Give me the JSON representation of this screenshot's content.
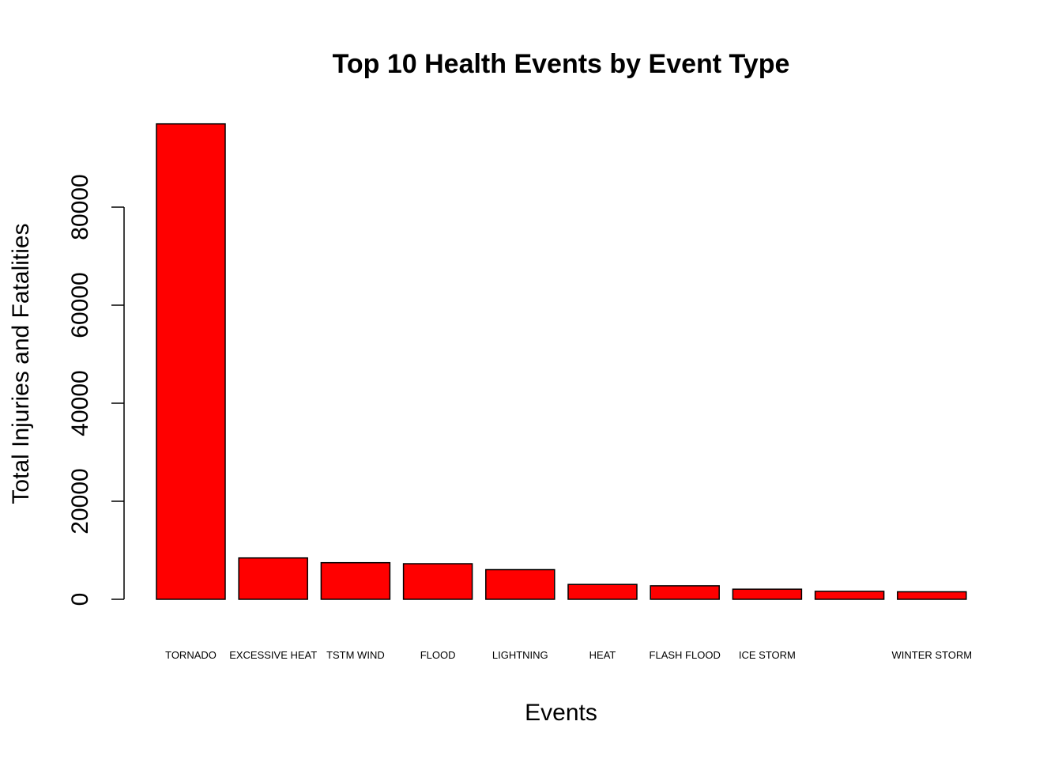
{
  "chart_data": {
    "type": "bar",
    "title": "Top 10 Health Events by Event Type",
    "xlabel": "Events",
    "ylabel": "Total Injuries and Fatalities",
    "categories": [
      "TORNADO",
      "EXCESSIVE HEAT",
      "TSTM WIND",
      "FLOOD",
      "LIGHTNING",
      "HEAT",
      "FLASH FLOOD",
      "ICE STORM",
      "",
      "WINTER STORM"
    ],
    "values": [
      96979,
      8428,
      7461,
      7259,
      6046,
      3037,
      2755,
      2064,
      1621,
      1527
    ],
    "yticks": [
      0,
      20000,
      40000,
      60000,
      80000
    ],
    "ylim": [
      0,
      97000
    ],
    "bar_color": "#ff0000",
    "edge_color": "#000000",
    "grid": false
  }
}
